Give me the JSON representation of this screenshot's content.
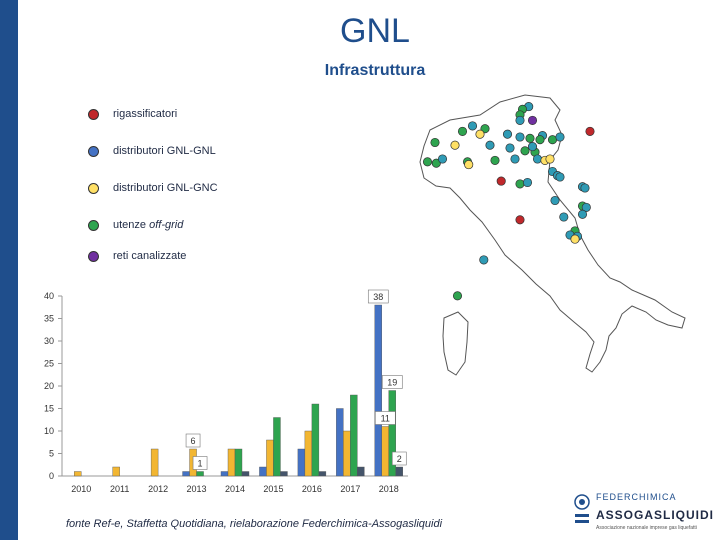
{
  "title": "GNL",
  "subtitle": "Infrastruttura",
  "legend": [
    {
      "label": "rigassificatori",
      "color": "#c0282b"
    },
    {
      "label": "distributori GNL-GNL",
      "color": "#4472c4"
    },
    {
      "label": "distributori GNL-GNC",
      "color": "#ffe066"
    },
    {
      "label": "utenze ",
      "label_em": "off-grid",
      "color": "#2ea44f"
    },
    {
      "label": "reti canalizzate",
      "color": "#7030a0"
    }
  ],
  "source": "fonte Ref-e, Staffetta Quotidiana, rielaborazione Federchimica-Assogasliquidi",
  "logo": {
    "federchimica": "FEDERCHIMICA",
    "assogasliquidi": "ASSOGASLIQUIDI",
    "tagline": "Associazione nazionale imprese gas liquefatti"
  },
  "chart_data": {
    "type": "bar",
    "categories": [
      "2010",
      "2011",
      "2012",
      "2013",
      "2014",
      "2015",
      "2016",
      "2017",
      "2018"
    ],
    "series": [
      {
        "name": "distributori GNL-GNL",
        "color": "#4472c4",
        "values": [
          0,
          0,
          0,
          1,
          1,
          2,
          6,
          15,
          38
        ]
      },
      {
        "name": "distributori GNL-GNC",
        "color": "#f2b632",
        "values": [
          1,
          2,
          6,
          6,
          6,
          8,
          10,
          10,
          11
        ]
      },
      {
        "name": "utenze off-grid",
        "color": "#2ea44f",
        "values": [
          0,
          0,
          0,
          1,
          6,
          13,
          16,
          18,
          19
        ]
      },
      {
        "name": "reti canalizzate",
        "color": "#44546a",
        "values": [
          0,
          0,
          0,
          0,
          1,
          1,
          1,
          2,
          2
        ]
      }
    ],
    "yticks": [
      0,
      5,
      10,
      15,
      20,
      25,
      30,
      35,
      40
    ],
    "ylim": [
      0,
      40
    ],
    "data_labels": [
      {
        "category": "2013",
        "series": 1,
        "text": "6"
      },
      {
        "category": "2013",
        "series": 2,
        "text": "1"
      },
      {
        "category": "2018",
        "series": 0,
        "text": "38"
      },
      {
        "category": "2018",
        "series": 2,
        "text": "19"
      },
      {
        "category": "2018",
        "series": 1,
        "text": "11"
      },
      {
        "category": "2018",
        "series": 3,
        "text": "2"
      }
    ]
  },
  "map_points": [
    {
      "lat": 46.5,
      "lon": 11.35,
      "type": "blue"
    },
    {
      "lat": 46.4,
      "lon": 11.1,
      "type": "green"
    },
    {
      "lat": 46.2,
      "lon": 11.0,
      "type": "green"
    },
    {
      "lat": 46.0,
      "lon": 11.5,
      "type": "purple"
    },
    {
      "lat": 46.0,
      "lon": 11.0,
      "type": "blue"
    },
    {
      "lat": 45.8,
      "lon": 9.1,
      "type": "blue"
    },
    {
      "lat": 45.7,
      "lon": 9.6,
      "type": "green"
    },
    {
      "lat": 45.6,
      "lon": 8.7,
      "type": "green"
    },
    {
      "lat": 45.5,
      "lon": 9.4,
      "type": "yellow"
    },
    {
      "lat": 45.5,
      "lon": 10.5,
      "type": "blue"
    },
    {
      "lat": 45.4,
      "lon": 11.0,
      "type": "blue"
    },
    {
      "lat": 45.45,
      "lon": 11.9,
      "type": "blue"
    },
    {
      "lat": 45.35,
      "lon": 11.4,
      "type": "green"
    },
    {
      "lat": 45.3,
      "lon": 11.8,
      "type": "green"
    },
    {
      "lat": 45.3,
      "lon": 12.3,
      "type": "green"
    },
    {
      "lat": 45.4,
      "lon": 12.6,
      "type": "blue"
    },
    {
      "lat": 45.6,
      "lon": 13.8,
      "type": "red"
    },
    {
      "lat": 45.2,
      "lon": 7.6,
      "type": "green"
    },
    {
      "lat": 45.1,
      "lon": 8.4,
      "type": "yellow"
    },
    {
      "lat": 45.1,
      "lon": 9.8,
      "type": "blue"
    },
    {
      "lat": 45.0,
      "lon": 10.6,
      "type": "blue"
    },
    {
      "lat": 44.9,
      "lon": 11.2,
      "type": "green"
    },
    {
      "lat": 44.85,
      "lon": 11.6,
      "type": "green"
    },
    {
      "lat": 45.05,
      "lon": 11.5,
      "type": "blue"
    },
    {
      "lat": 44.5,
      "lon": 7.3,
      "type": "green"
    },
    {
      "lat": 44.45,
      "lon": 7.65,
      "type": "green"
    },
    {
      "lat": 44.6,
      "lon": 7.9,
      "type": "blue"
    },
    {
      "lat": 44.5,
      "lon": 8.9,
      "type": "green"
    },
    {
      "lat": 44.4,
      "lon": 8.95,
      "type": "yellow"
    },
    {
      "lat": 44.55,
      "lon": 10.0,
      "type": "green"
    },
    {
      "lat": 44.6,
      "lon": 10.8,
      "type": "blue"
    },
    {
      "lat": 44.6,
      "lon": 11.7,
      "type": "blue"
    },
    {
      "lat": 44.55,
      "lon": 12.0,
      "type": "yellow"
    },
    {
      "lat": 44.6,
      "lon": 12.2,
      "type": "yellow"
    },
    {
      "lat": 44.15,
      "lon": 12.3,
      "type": "blue"
    },
    {
      "lat": 44.0,
      "lon": 12.5,
      "type": "blue"
    },
    {
      "lat": 43.95,
      "lon": 12.6,
      "type": "blue"
    },
    {
      "lat": 43.6,
      "lon": 13.5,
      "type": "blue"
    },
    {
      "lat": 43.55,
      "lon": 13.6,
      "type": "blue"
    },
    {
      "lat": 43.8,
      "lon": 10.25,
      "type": "red"
    },
    {
      "lat": 43.7,
      "lon": 11.0,
      "type": "green"
    },
    {
      "lat": 43.75,
      "lon": 11.3,
      "type": "blue"
    },
    {
      "lat": 43.1,
      "lon": 12.4,
      "type": "blue"
    },
    {
      "lat": 42.9,
      "lon": 13.5,
      "type": "green"
    },
    {
      "lat": 42.85,
      "lon": 13.65,
      "type": "blue"
    },
    {
      "lat": 42.6,
      "lon": 13.5,
      "type": "blue"
    },
    {
      "lat": 42.5,
      "lon": 12.75,
      "type": "blue"
    },
    {
      "lat": 42.4,
      "lon": 11.0,
      "type": "red"
    },
    {
      "lat": 42.0,
      "lon": 13.2,
      "type": "green"
    },
    {
      "lat": 41.85,
      "lon": 13.0,
      "type": "blue"
    },
    {
      "lat": 41.8,
      "lon": 13.3,
      "type": "blue"
    },
    {
      "lat": 41.7,
      "lon": 13.2,
      "type": "yellow"
    },
    {
      "lat": 40.95,
      "lon": 9.55,
      "type": "blue"
    },
    {
      "lat": 39.65,
      "lon": 8.5,
      "type": "green"
    }
  ]
}
